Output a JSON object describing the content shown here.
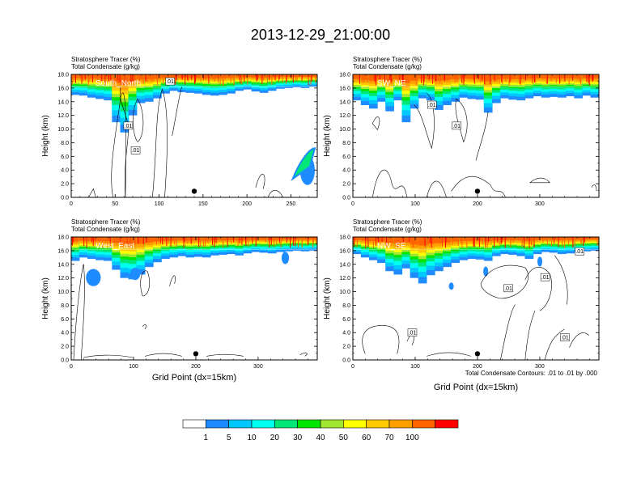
{
  "main_title": "2013-12-29_21:00:00",
  "colors": [
    "#ffffff",
    "#1e8cff",
    "#00c8ff",
    "#00ffee",
    "#00e678",
    "#00e600",
    "#a0e632",
    "#ffff00",
    "#ffc800",
    "#ffa000",
    "#ff6400",
    "#ff0000"
  ],
  "colorbar_labels": [
    "1",
    "5",
    "10",
    "20",
    "30",
    "40",
    "50",
    "60",
    "70",
    "100"
  ],
  "footnote": "Total Condensate Contours: .01 to .01 by .000",
  "chart_data": [
    {
      "type": "heatmap",
      "panel_label": "South_North",
      "title_line1": "Stratosphere Tracer   (%)",
      "title_line2": "Total Condensate   (g/kg)",
      "ylabel": "Height (km)",
      "xlabel": "",
      "ylim": [
        0,
        18
      ],
      "yticks": [
        "0.0",
        "2.0",
        "4.0",
        "6.0",
        "8.0",
        "10.0",
        "12.0",
        "14.0",
        "16.0",
        "18.0"
      ],
      "xlim": [
        0,
        280
      ],
      "xticks": [
        0,
        50,
        100,
        150,
        200,
        250
      ],
      "contour_labels": [
        ".01",
        ".01",
        ".01"
      ],
      "marker_x": 140
    },
    {
      "type": "heatmap",
      "panel_label": "SW_NE",
      "title_line1": "Stratosphere Tracer   (%)",
      "title_line2": "Total Condensate   (g/kg)",
      "ylabel": "Height (km)",
      "xlabel": "",
      "ylim": [
        0,
        18
      ],
      "yticks": [
        "0.0",
        "2.0",
        "4.0",
        "6.0",
        "8.0",
        "10.0",
        "12.0",
        "14.0",
        "16.0",
        "18.0"
      ],
      "xlim": [
        0,
        395
      ],
      "xticks": [
        0,
        100,
        200,
        300
      ],
      "contour_labels": [
        ".01",
        ".01"
      ],
      "marker_x": 200
    },
    {
      "type": "heatmap",
      "panel_label": "West_East",
      "title_line1": "Stratosphere Tracer   (%)",
      "title_line2": "Total Condensate   (g/kg)",
      "ylabel": "Height (km)",
      "xlabel": "Grid Point (dx=15km)",
      "ylim": [
        0,
        18
      ],
      "yticks": [
        "0.0",
        "2.0",
        "4.0",
        "6.0",
        "8.0",
        "10.0",
        "12.0",
        "14.0",
        "16.0",
        "18.0"
      ],
      "xlim": [
        0,
        395
      ],
      "xticks": [
        0,
        100,
        200,
        300
      ],
      "contour_labels": [],
      "marker_x": 200
    },
    {
      "type": "heatmap",
      "panel_label": "NW_SE",
      "title_line1": "Stratosphere Tracer   (%)",
      "title_line2": "Total Condensate   (g/kg)",
      "ylabel": "Height (km)",
      "xlabel": "Grid Point (dx=15km)",
      "ylim": [
        0,
        18
      ],
      "yticks": [
        "0.0",
        "2.0",
        "4.0",
        "6.0",
        "8.0",
        "10.0",
        "12.0",
        "14.0",
        "16.0",
        "18.0"
      ],
      "xlim": [
        0,
        395
      ],
      "xticks": [
        0,
        100,
        200,
        300
      ],
      "contour_labels": [
        ".01",
        ".01",
        ".01",
        ".01",
        ".01"
      ],
      "marker_x": 200
    }
  ]
}
